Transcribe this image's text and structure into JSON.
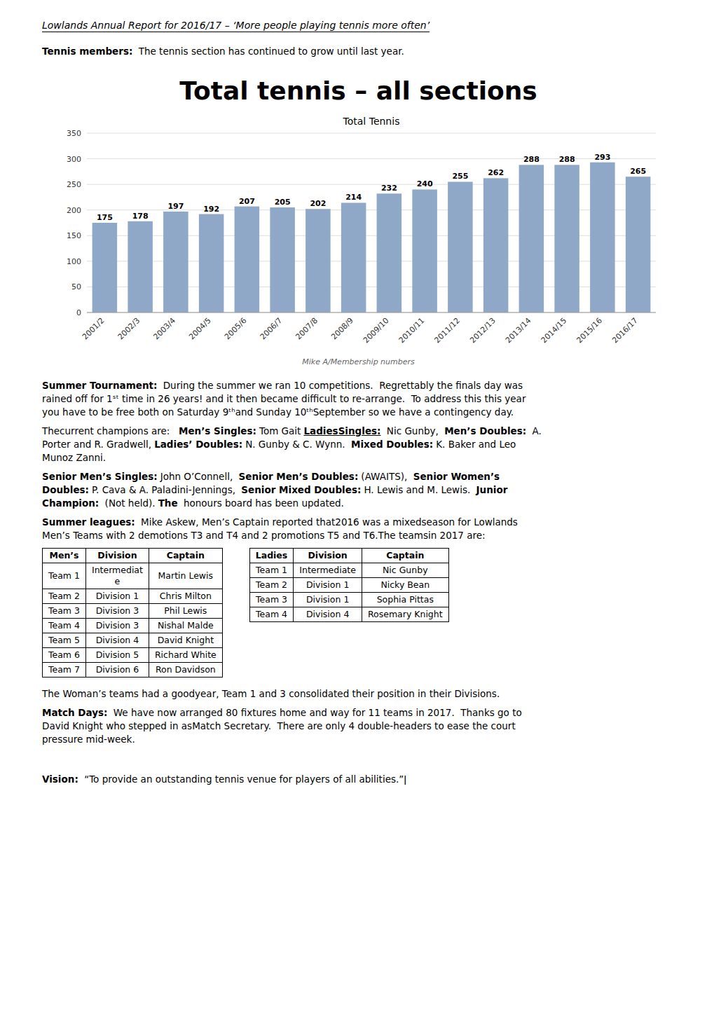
{
  "page_title": "Lowlands Annual Report for 2016/17 – ‘More people playing tennis more often’",
  "intro": [
    [
      [
        {
          "text": "Tennis members:",
          "bold": true
        },
        {
          "text": " The tennis section has continued to grow until last year."
        }
      ]
    ]
  ],
  "chart_data": {
    "type": "bar",
    "title": "Total tennis – all sections",
    "subtitle": "Total Tennis",
    "categories": [
      "2001/2",
      "2002/3",
      "2003/4",
      "2004/5",
      "2005/6",
      "2006/7",
      "2007/8",
      "2008/9",
      "2009/10",
      "2010/11",
      "2011/12",
      "2012/13",
      "2013/14",
      "2014/15",
      "2015/16",
      "2016/17"
    ],
    "values": [
      175,
      178,
      197,
      192,
      207,
      205,
      202,
      214,
      232,
      240,
      255,
      262,
      288,
      288,
      293,
      265
    ],
    "color": "#8fa8c8",
    "ylim": [
      0,
      350
    ],
    "yticks": [
      0,
      50,
      100,
      150,
      200,
      250,
      300,
      350
    ],
    "grid": true,
    "data_labels": true,
    "annotations": [
      "Mike A/Membership numbers"
    ]
  },
  "body_before_tables": [
    [
      [
        {
          "text": "Summer Tournament:",
          "bold": true
        },
        {
          "text": " During the summer we ran 10 competitions.  Regrettably the finals day was"
        }
      ],
      [
        {
          "text": "rained off for 1ˢᵗ time in 26 years! and it then became difficult to re-arrange.  To address this this year"
        }
      ],
      [
        {
          "text": "you have to be free both on Saturday 9ᵗʰand Sunday 10ᵗʰSeptember so we have a contingency day."
        }
      ]
    ],
    [
      [
        {
          "text": "Thecurrent champions are:  "
        },
        {
          "text": "Men’s Singles:",
          "bold": true
        },
        {
          "text": "Tom Gait"
        },
        {
          "text": "LadiesSingles:",
          "bold": true,
          "underline": true
        },
        {
          "text": " Nic Gunby, "
        },
        {
          "text": "Men’s Doubles:",
          "bold": true
        },
        {
          "text": " A."
        }
      ],
      [
        {
          "text": "Porter and R. Gradwell,"
        },
        {
          "text": "Ladies’ Doubles:",
          "bold": true
        },
        {
          "text": "N. Gunby & C. Wynn. "
        },
        {
          "text": "Mixed Doubles:",
          "bold": true
        },
        {
          "text": "K. Baker and Leo"
        }
      ],
      [
        {
          "text": "Munoz Zanni."
        }
      ]
    ],
    [
      [
        {
          "text": "Senior Men’s Singles:",
          "bold": true
        },
        {
          "text": "John O’Connell, "
        },
        {
          "text": "Senior Men’s Doubles:",
          "bold": true
        },
        {
          "text": "(AWAITS), "
        },
        {
          "text": "Senior Women’s",
          "bold": true
        }
      ],
      [
        {
          "text": "Doubles:",
          "bold": true
        },
        {
          "text": "P. Cava & A. Paladini-Jennings, "
        },
        {
          "text": "Senior Mixed Doubles:",
          "bold": true
        },
        {
          "text": "H. Lewis and M. Lewis. "
        },
        {
          "text": "Junior",
          "bold": true
        }
      ],
      [
        {
          "text": "Champion:",
          "bold": true
        },
        {
          "text": " (Not held)."
        },
        {
          "text": "The",
          "bold": true
        },
        {
          "text": " honours board has been updated."
        }
      ]
    ],
    [
      [
        {
          "text": "Summer leagues:",
          "bold": true
        },
        {
          "text": " Mike Askew, Men’s Captain reported that2016 was a mixedseason for Lowlands"
        }
      ],
      [
        {
          "text": "Men’s Teams with 2 demotions T3 and T4 and 2 promotions T5 and T6.The teamsin 2017 are:"
        }
      ]
    ]
  ],
  "tables": [
    {
      "headers": [
        "Men’s",
        "Division",
        "Captain"
      ],
      "rows": [
        [
          "Team 1",
          "Intermediat\ne",
          "Martin Lewis"
        ],
        [
          "Team 2",
          "Division 1",
          "Chris Milton"
        ],
        [
          "Team 3",
          "Division 3",
          "Phil Lewis"
        ],
        [
          "Team 4",
          "Division 3",
          "Nishal Malde"
        ],
        [
          "Team 5",
          "Division 4",
          "David Knight"
        ],
        [
          "Team 6",
          "Division 5",
          "Richard White"
        ],
        [
          "Team 7",
          "Division 6",
          "Ron Davidson"
        ]
      ]
    },
    {
      "headers": [
        "Ladies",
        "Division",
        "Captain"
      ],
      "rows": [
        [
          "Team 1",
          "Intermediate",
          "Nic Gunby"
        ],
        [
          "Team 2",
          "Division 1",
          "Nicky Bean"
        ],
        [
          "Team 3",
          "Division 1",
          "Sophia Pittas"
        ],
        [
          "Team 4",
          "Division 4",
          "Rosemary Knight"
        ]
      ]
    }
  ],
  "body_after_tables": [
    [
      [
        {
          "text": "The Woman’s teams had a goodyear, Team 1 and 3 consolidated their position in their Divisions."
        }
      ]
    ],
    [
      [
        {
          "text": "Match Days:",
          "bold": true
        },
        {
          "text": " We have now arranged 80 fixtures home and way for 11 teams in 2017.  Thanks go to"
        }
      ],
      [
        {
          "text": "David Knight who stepped in asMatch Secretary.  There are only 4 double-headers to ease the court"
        }
      ],
      [
        {
          "text": "pressure mid-week."
        }
      ]
    ],
    [
      [
        {
          "text": "Vision:",
          "bold": true
        },
        {
          "text": " “To provide an outstanding tennis venue for players of all abilities.”ǀ"
        }
      ]
    ]
  ]
}
